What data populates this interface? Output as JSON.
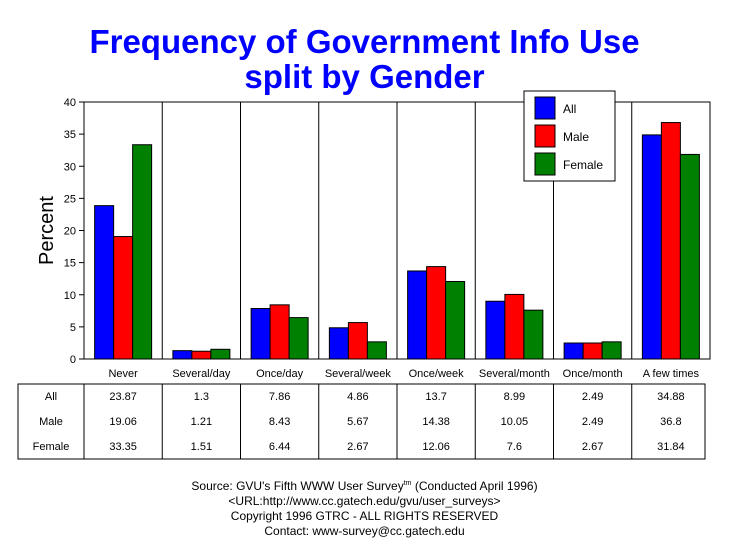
{
  "chart_data": {
    "type": "bar",
    "title": "Frequency of Government Info Use",
    "subtitle": "split by Gender",
    "ylabel": "Percent",
    "xlabel": "",
    "ylim": [
      0,
      40
    ],
    "yticks": [
      0,
      5,
      10,
      15,
      20,
      25,
      30,
      35,
      40
    ],
    "grid": false,
    "legend_position": "top-right",
    "categories": [
      "Never",
      "Several/day",
      "Once/day",
      "Several/week",
      "Once/week",
      "Several/month",
      "Once/month",
      "A few times"
    ],
    "series": [
      {
        "name": "All",
        "color": "#0000ff",
        "values": [
          23.87,
          1.3,
          7.86,
          4.86,
          13.7,
          8.99,
          2.49,
          34.88
        ]
      },
      {
        "name": "Male",
        "color": "#ff0000",
        "values": [
          19.06,
          1.21,
          8.43,
          5.67,
          14.38,
          10.05,
          2.49,
          36.8
        ]
      },
      {
        "name": "Female",
        "color": "#008000",
        "values": [
          33.35,
          1.51,
          6.44,
          2.67,
          12.06,
          7.6,
          2.67,
          31.84
        ]
      }
    ]
  },
  "footer": {
    "source_prefix": "Source: GVU's Fifth WWW User Survey",
    "source_tm": "tm",
    "source_suffix": " (Conducted April 1996)",
    "url": "<URL:http://www.cc.gatech.edu/gvu/user_surveys>",
    "copyright": "Copyright 1996 GTRC -  ALL RIGHTS RESERVED",
    "contact": "Contact: www-survey@cc.gatech.edu"
  }
}
